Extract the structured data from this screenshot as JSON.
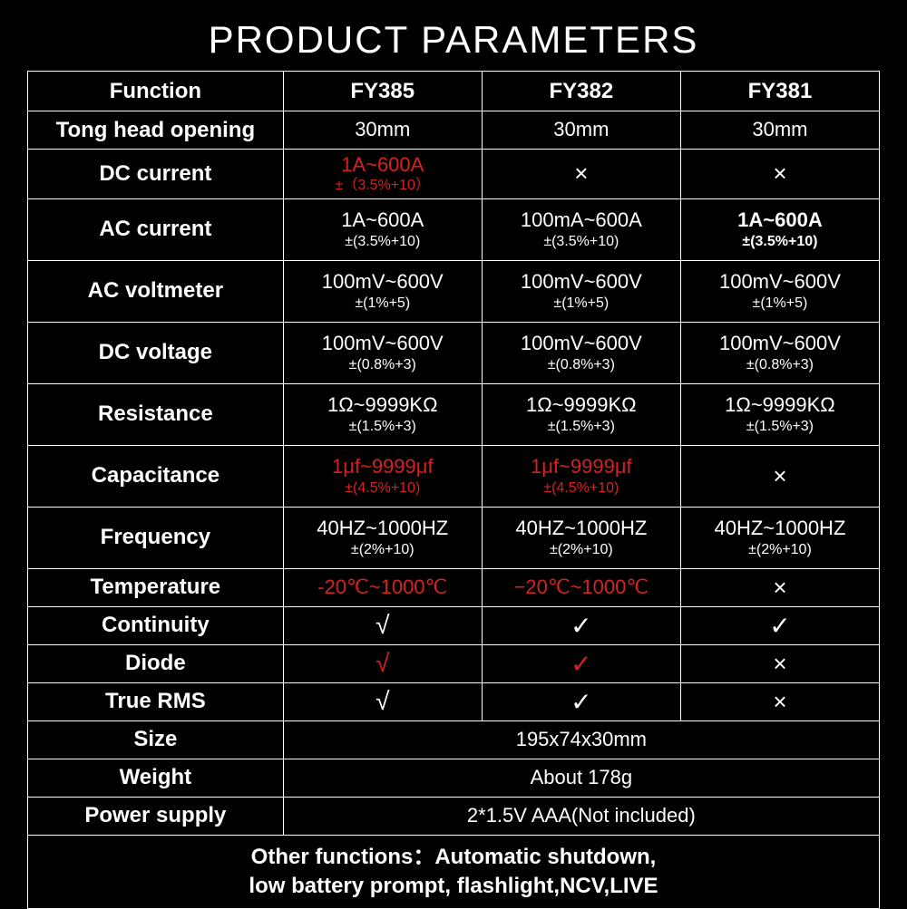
{
  "title": "PRODUCT PARAMETERS",
  "colors": {
    "background": "#000000",
    "text": "#ffffff",
    "highlight": "#d82020",
    "border": "#ffffff"
  },
  "headers": {
    "function": "Function",
    "models": [
      "FY385",
      "FY382",
      "FY381"
    ]
  },
  "rows": {
    "tong": {
      "label": "Tong head opening",
      "vals": [
        "30mm",
        "30mm",
        "30mm"
      ]
    },
    "dc_current": {
      "label": "DC current",
      "m1": {
        "main": "1A~600A",
        "sub": "±（3.5%+10）",
        "red": true
      },
      "m2": {
        "x": "×"
      },
      "m3": {
        "x": "×"
      }
    },
    "ac_current": {
      "label": "AC current",
      "m1": {
        "main": "1A~600A",
        "sub": "±(3.5%+10)"
      },
      "m2": {
        "main": "100mA~600A",
        "sub": "±(3.5%+10)"
      },
      "m3": {
        "main": "1A~600A",
        "sub": "±(3.5%+10)",
        "bold": true
      }
    },
    "ac_voltmeter": {
      "label": "AC voltmeter",
      "m1": {
        "main": "100mV~600V",
        "sub": "±(1%+5)"
      },
      "m2": {
        "main": "100mV~600V",
        "sub": "±(1%+5)"
      },
      "m3": {
        "main": "100mV~600V",
        "sub": "±(1%+5)"
      }
    },
    "dc_voltage": {
      "label": "DC voltage",
      "m1": {
        "main": "100mV~600V",
        "sub": "±(0.8%+3)"
      },
      "m2": {
        "main": "100mV~600V",
        "sub": "±(0.8%+3)"
      },
      "m3": {
        "main": "100mV~600V",
        "sub": "±(0.8%+3)"
      }
    },
    "resistance": {
      "label": "Resistance",
      "m1": {
        "main": "1Ω~9999KΩ",
        "sub": "±(1.5%+3)"
      },
      "m2": {
        "main": "1Ω~9999KΩ",
        "sub": "±(1.5%+3)"
      },
      "m3": {
        "main": "1Ω~9999KΩ",
        "sub": "±(1.5%+3)"
      }
    },
    "capacitance": {
      "label": "Capacitance",
      "m1": {
        "main": "1μf~9999μf",
        "sub": "±(4.5%+10)",
        "red": true
      },
      "m2": {
        "main": "1μf~9999μf",
        "sub": "±(4.5%+10)",
        "red": true
      },
      "m3": {
        "x": "×"
      }
    },
    "frequency": {
      "label": "Frequency",
      "m1": {
        "main": "40HZ~1000HZ",
        "sub": "±(2%+10)"
      },
      "m2": {
        "main": "40HZ~1000HZ",
        "sub": "±(2%+10)"
      },
      "m3": {
        "main": "40HZ~1000HZ",
        "sub": "±(2%+10)"
      }
    },
    "temperature": {
      "label": "Temperature",
      "m1": {
        "main": "-20℃~1000℃",
        "red": true
      },
      "m2": {
        "main": "−20℃~1000℃",
        "red": true
      },
      "m3": {
        "x": "×"
      }
    },
    "continuity": {
      "label": "Continuity",
      "m1": {
        "check": "√"
      },
      "m2": {
        "check": "✓"
      },
      "m3": {
        "check": "✓"
      }
    },
    "diode": {
      "label": "Diode",
      "m1": {
        "check": "√",
        "red": true
      },
      "m2": {
        "check": "✓",
        "red": true
      },
      "m3": {
        "x": "×"
      }
    },
    "true_rms": {
      "label": "True RMS",
      "m1": {
        "check": "√"
      },
      "m2": {
        "check": "✓"
      },
      "m3": {
        "x": "×"
      }
    },
    "size": {
      "label": "Size",
      "val": "195x74x30mm"
    },
    "weight": {
      "label": "Weight",
      "val": "About 178g"
    },
    "power": {
      "label": "Power supply",
      "val": "2*1.5V AAA(Not included)"
    }
  },
  "footer_line1": "Other functions：Automatic shutdown,",
  "footer_line2": "low battery prompt, flashlight,NCV,LIVE"
}
